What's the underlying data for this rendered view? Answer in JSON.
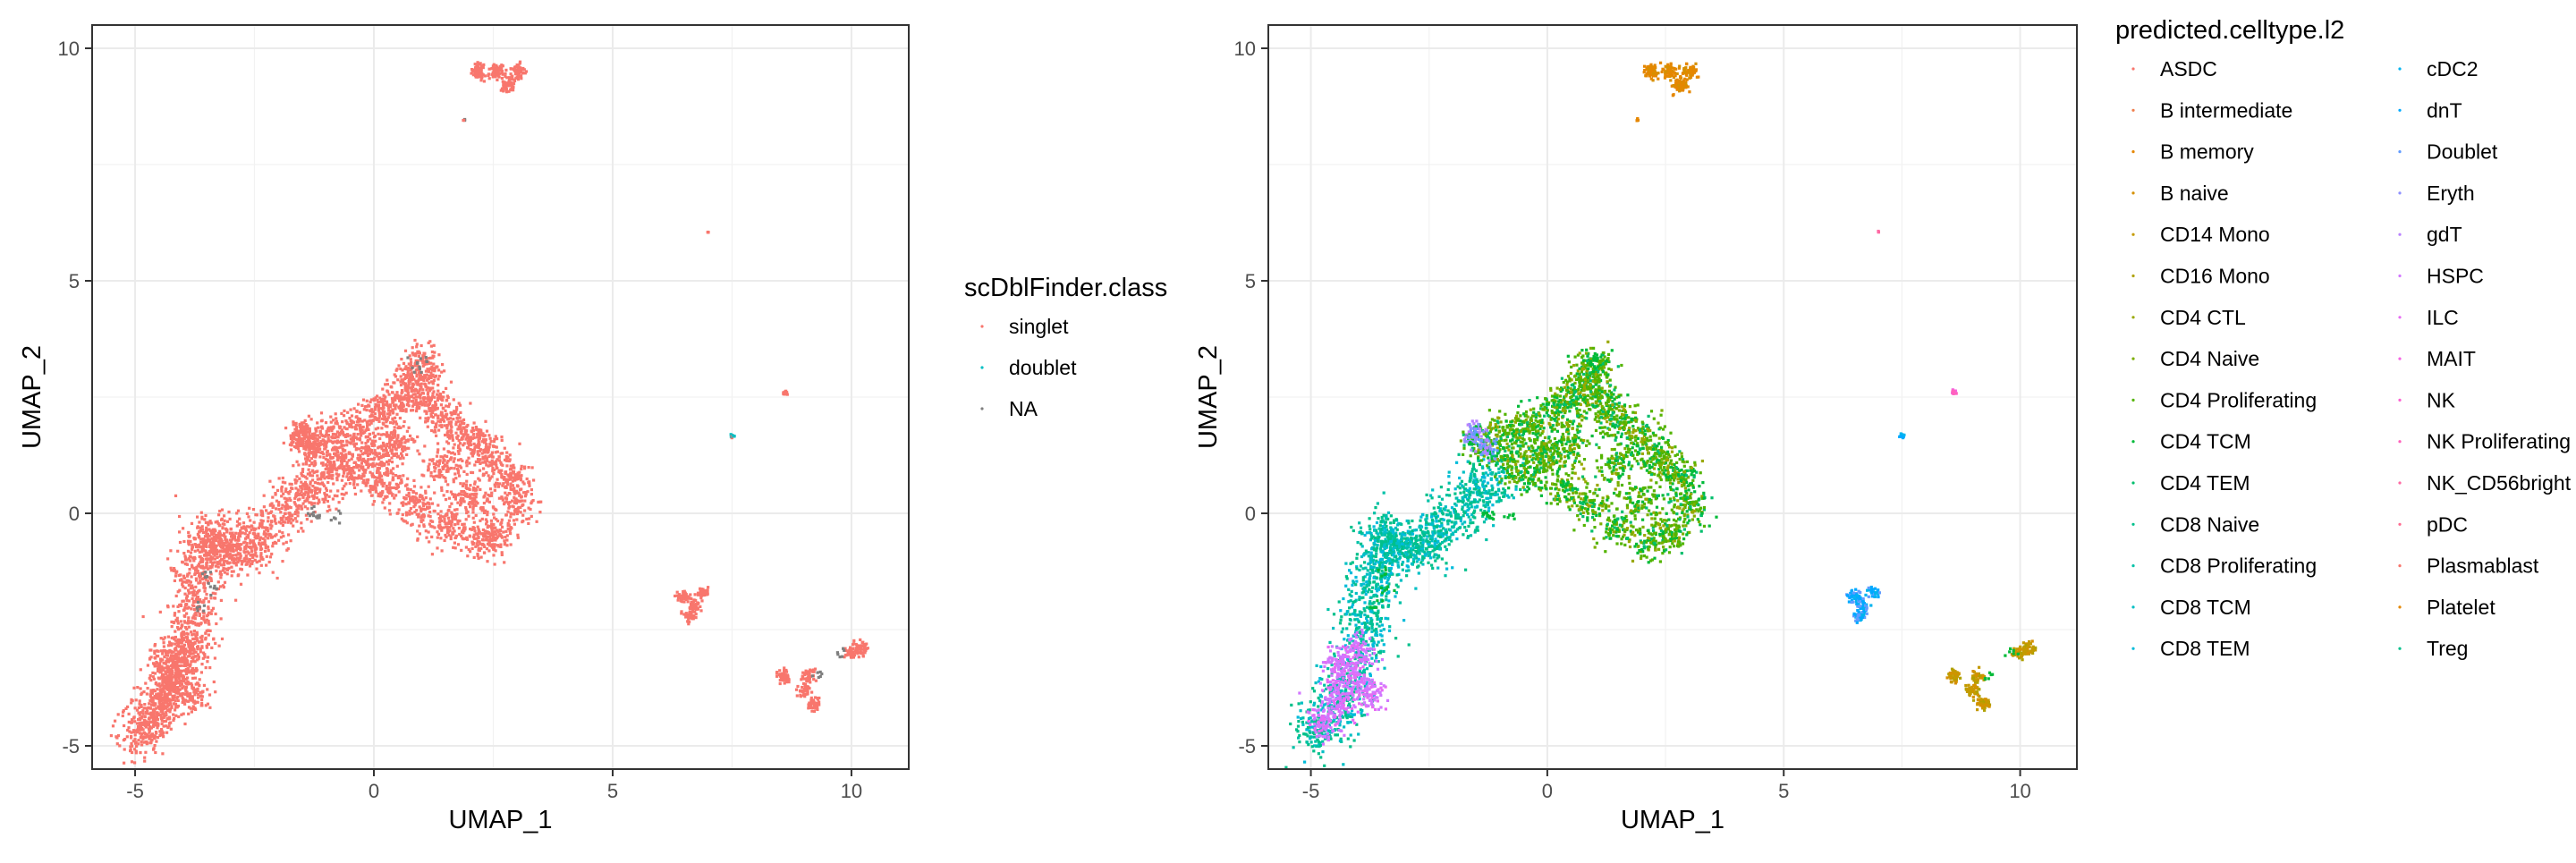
{
  "chart_data": [
    {
      "type": "scatter",
      "xlabel": "UMAP_1",
      "ylabel": "UMAP_2",
      "xlim": [
        -5.9,
        11.2
      ],
      "ylim": [
        -5.5,
        10.5
      ],
      "x_ticks": [
        -5,
        0,
        5,
        10
      ],
      "y_ticks": [
        -5,
        0,
        5,
        10
      ],
      "grid": true,
      "legend": {
        "title": "scDblFinder.class",
        "placement": "right",
        "columns": 1,
        "entries": [
          {
            "label": "singlet",
            "color": "#F8766D"
          },
          {
            "label": "doublet",
            "color": "#00BFC4"
          },
          {
            "label": "NA",
            "color": "#7F7F7F"
          }
        ]
      }
    },
    {
      "type": "scatter",
      "xlabel": "UMAP_1",
      "ylabel": "UMAP_2",
      "xlim": [
        -5.9,
        11.2
      ],
      "ylim": [
        -5.5,
        10.5
      ],
      "x_ticks": [
        -5,
        0,
        5,
        10
      ],
      "y_ticks": [
        -5,
        0,
        5,
        10
      ],
      "grid": true,
      "legend": {
        "title": "predicted.celltype.l2",
        "placement": "right",
        "columns": 2,
        "entries": [
          {
            "label": "ASDC",
            "color": "#F8766D"
          },
          {
            "label": "B intermediate",
            "color": "#F07E4C"
          },
          {
            "label": "B memory",
            "color": "#E58700"
          },
          {
            "label": "B naive",
            "color": "#D59000"
          },
          {
            "label": "CD14 Mono",
            "color": "#C49A00"
          },
          {
            "label": "CD16 Mono",
            "color": "#AFA100"
          },
          {
            "label": "CD4 CTL",
            "color": "#99A800"
          },
          {
            "label": "CD4 Naive",
            "color": "#7CAE00"
          },
          {
            "label": "CD4 Proliferating",
            "color": "#53B400"
          },
          {
            "label": "CD4 TCM",
            "color": "#00BA38"
          },
          {
            "label": "CD4 TEM",
            "color": "#00BE6C"
          },
          {
            "label": "CD8 Naive",
            "color": "#00C08B"
          },
          {
            "label": "CD8 Proliferating",
            "color": "#00C1A7"
          },
          {
            "label": "CD8 TCM",
            "color": "#00BFC4"
          },
          {
            "label": "CD8 TEM",
            "color": "#00BBDA"
          },
          {
            "label": "cDC2",
            "color": "#00B4EF"
          },
          {
            "label": "dnT",
            "color": "#00A9FF"
          },
          {
            "label": "Doublet",
            "color": "#619CFF"
          },
          {
            "label": "Eryth",
            "color": "#8F91FF"
          },
          {
            "label": "gdT",
            "color": "#B983FF"
          },
          {
            "label": "HSPC",
            "color": "#D277FF"
          },
          {
            "label": "ILC",
            "color": "#E76BF3"
          },
          {
            "label": "MAIT",
            "color": "#F564E3"
          },
          {
            "label": "NK",
            "color": "#FD61D1"
          },
          {
            "label": "NK Proliferating",
            "color": "#FF62BC"
          },
          {
            "label": "NK_CD56bright",
            "color": "#FF6AA4"
          },
          {
            "label": "pDC",
            "color": "#FF6C91"
          },
          {
            "label": "Plasmablast",
            "color": "#F8766D"
          },
          {
            "label": "Platelet",
            "color": "#E58700"
          },
          {
            "label": "Treg",
            "color": "#00C08B"
          }
        ]
      }
    }
  ],
  "clusters": [
    {
      "id": "main-tail",
      "pts": [
        [
          -4.9,
          -4.7
        ],
        [
          -4.6,
          -4.3
        ],
        [
          -4.3,
          -3.9
        ],
        [
          -4.1,
          -3.4
        ],
        [
          -3.9,
          -2.8
        ],
        [
          -3.8,
          -2.2
        ],
        [
          -3.7,
          -1.6
        ],
        [
          -3.6,
          -1.0
        ],
        [
          -3.5,
          -0.5
        ],
        [
          -3.3,
          -0.6
        ],
        [
          -3.1,
          -0.8
        ],
        [
          -2.8,
          -0.8
        ],
        [
          -2.5,
          -0.6
        ],
        [
          -2.2,
          -0.3
        ],
        [
          -1.8,
          0.1
        ],
        [
          -1.5,
          0.4
        ],
        [
          -1.2,
          0.7
        ]
      ],
      "spread": 0.55,
      "n": 1800,
      "colors": {
        "0": [
          "#F8766D"
        ],
        "1": [
          "#00C1A7",
          "#00BFC4",
          "#00C08B",
          "#00BBDA",
          "#00C08B"
        ]
      }
    },
    {
      "id": "main-tail-purple",
      "pts": [
        [
          -4.7,
          -4.5
        ],
        [
          -4.4,
          -4.0
        ],
        [
          -4.2,
          -3.6
        ],
        [
          -4.4,
          -3.2
        ],
        [
          -4.0,
          -3.0
        ],
        [
          -3.8,
          -3.9
        ]
      ],
      "spread": 0.35,
      "n": 500,
      "colors": {
        "0": [
          "#F8766D"
        ],
        "1": [
          "#D277FF",
          "#E76BF3",
          "#D277FF"
        ]
      }
    },
    {
      "id": "main-body",
      "pts": [
        [
          -1.3,
          1.5
        ],
        [
          -0.8,
          1.7
        ],
        [
          -0.3,
          1.9
        ],
        [
          0.2,
          2.2
        ],
        [
          0.6,
          2.5
        ],
        [
          0.9,
          2.9
        ],
        [
          1.0,
          3.2
        ],
        [
          1.2,
          2.4
        ],
        [
          1.5,
          2.0
        ],
        [
          2.0,
          1.6
        ],
        [
          2.4,
          1.2
        ],
        [
          2.8,
          0.8
        ],
        [
          3.0,
          0.2
        ],
        [
          2.6,
          -0.4
        ],
        [
          2.2,
          -0.6
        ],
        [
          1.5,
          -0.3
        ],
        [
          0.9,
          0.2
        ],
        [
          0.3,
          0.6
        ],
        [
          -0.3,
          0.9
        ],
        [
          -0.8,
          1.1
        ],
        [
          0.5,
          1.5
        ],
        [
          1.5,
          1.0
        ],
        [
          2.0,
          0.3
        ],
        [
          0.0,
          1.3
        ]
      ],
      "spread": 0.42,
      "n": 2600,
      "colors": {
        "0": [
          "#F8766D"
        ],
        "1": [
          "#53B400",
          "#00BA38",
          "#7CAE00",
          "#53B400",
          "#00BA38",
          "#99A800",
          "#53B400",
          "#00BE6C"
        ]
      }
    },
    {
      "id": "main-left-lobe",
      "pts": [
        [
          -1.6,
          1.6
        ],
        [
          -1.3,
          1.4
        ],
        [
          -1.5,
          1.8
        ]
      ],
      "spread": 0.2,
      "n": 150,
      "colors": {
        "0": [
          "#F8766D"
        ],
        "1": [
          "#8F91FF",
          "#619CFF",
          "#B983FF",
          "#00BA38"
        ]
      }
    },
    {
      "id": "top-cluster",
      "pts": [
        [
          2.2,
          9.5
        ],
        [
          2.6,
          9.5
        ],
        [
          3.0,
          9.5
        ],
        [
          2.8,
          9.2
        ]
      ],
      "spread": 0.15,
      "n": 260,
      "colors": {
        "0": [
          "#F8766D"
        ],
        "1": [
          "#E58700",
          "#D59000",
          "#E58700"
        ]
      }
    },
    {
      "id": "mid-right-cluster",
      "pts": [
        [
          6.5,
          -1.8
        ],
        [
          6.7,
          -2.0
        ],
        [
          6.9,
          -1.7
        ],
        [
          6.6,
          -2.2
        ]
      ],
      "spread": 0.13,
      "n": 160,
      "colors": {
        "0": [
          "#F8766D"
        ],
        "1": [
          "#00A9FF",
          "#00B4EF",
          "#619CFF",
          "#00A9FF"
        ]
      }
    },
    {
      "id": "lower-right-cluster",
      "pts": [
        [
          8.6,
          -3.5
        ],
        [
          9.0,
          -3.8
        ],
        [
          9.2,
          -4.1
        ],
        [
          9.1,
          -3.5
        ],
        [
          10.0,
          -3.0
        ],
        [
          10.2,
          -2.9
        ]
      ],
      "spread": 0.14,
      "n": 260,
      "colors": {
        "0": [
          "#F8766D"
        ],
        "1": [
          "#C49A00",
          "#AFA100",
          "#C49A00",
          "#D59000"
        ]
      }
    },
    {
      "id": "small-pink",
      "pts": [
        [
          8.6,
          2.6
        ]
      ],
      "spread": 0.05,
      "n": 18,
      "colors": {
        "0": [
          "#F8766D"
        ],
        "1": [
          "#F564E3",
          "#FF62BC"
        ]
      }
    },
    {
      "id": "small-blue",
      "pts": [
        [
          7.5,
          1.65
        ]
      ],
      "spread": 0.05,
      "n": 14,
      "colors": {
        "0": [
          "#00BFC4",
          "#F8766D"
        ],
        "1": [
          "#00B4EF",
          "#00A9FF"
        ]
      }
    },
    {
      "id": "small-red",
      "pts": [
        [
          7.0,
          6.05
        ]
      ],
      "spread": 0.02,
      "n": 4,
      "colors": {
        "0": [
          "#F8766D"
        ],
        "1": [
          "#FF6AA4"
        ]
      }
    },
    {
      "id": "small-orange",
      "pts": [
        [
          1.9,
          8.45
        ]
      ],
      "spread": 0.03,
      "n": 5,
      "colors": {
        "0": [
          "#7F7F7F",
          "#F8766D"
        ],
        "1": [
          "#E58700"
        ]
      }
    }
  ],
  "gray_specks": [
    [
      -1.3,
      0.0
    ],
    [
      -1.2,
      -0.1
    ],
    [
      -3.4,
      -1.6
    ],
    [
      -3.5,
      -1.3
    ],
    [
      0.9,
      3.1
    ],
    [
      1.0,
      3.3
    ],
    [
      9.8,
      -3.0
    ],
    [
      9.3,
      -3.5
    ],
    [
      -3.6,
      -2.0
    ],
    [
      -0.8,
      -0.1
    ]
  ]
}
